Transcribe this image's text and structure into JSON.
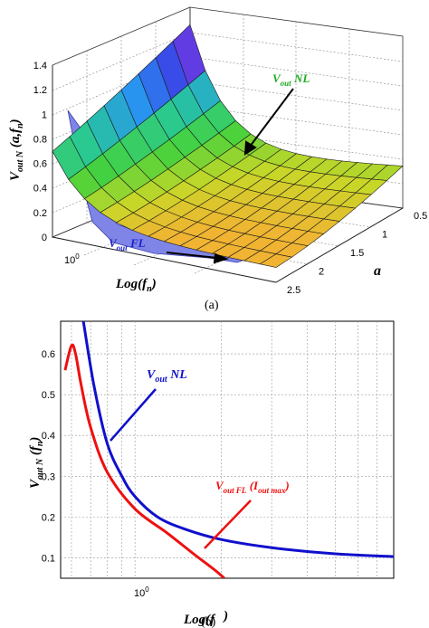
{
  "chart_data": [
    {
      "id": "a",
      "type": "surface",
      "caption": "(a)",
      "z_label": {
        "main": "V",
        "sub": "out N",
        "rest": " (a,f",
        "rest_sub": "n",
        "close": ")"
      },
      "x_label": {
        "main": "Log(f",
        "sub": "n",
        "close": ")"
      },
      "y_label": "a",
      "z_ticks": [
        "0",
        "0.2",
        "0.4",
        "0.6",
        "0.8",
        "1",
        "1.2",
        "1.4"
      ],
      "z_range": [
        0,
        1.4
      ],
      "a_ticks": [
        "0.5",
        "1",
        "1.5",
        "2",
        "2.5"
      ],
      "a_range": [
        0.5,
        2.5
      ],
      "x_tick": {
        "base": "10",
        "exp": "0"
      },
      "annotations": [
        {
          "main": "V",
          "sub": "out",
          "rest": " NL",
          "color": "#22aa22"
        },
        {
          "main": "V",
          "sub": "out",
          "rest": " FL",
          "color": "#2222cc"
        }
      ]
    },
    {
      "id": "b",
      "type": "line",
      "caption": "(b)",
      "y_label": {
        "main": "V",
        "sub": "out N",
        "rest": " (f",
        "rest_sub": "n",
        "close": ")"
      },
      "x_label": {
        "main": "Log(f",
        "sub": "",
        "close": ")"
      },
      "x_scale": "log",
      "x_range": [
        0.55,
        8
      ],
      "y_range": [
        0.05,
        0.68
      ],
      "y_ticks": [
        "0.1",
        "0.2",
        "0.3",
        "0.4",
        "0.5",
        "0.6"
      ],
      "x_tick": {
        "base": "10",
        "exp": "0"
      },
      "series": [
        {
          "color": "#1010cc",
          "x": [
            0.66,
            0.72,
            0.8,
            0.9,
            1.0,
            1.2,
            1.5,
            2.0,
            3.0,
            5.0,
            8.0
          ],
          "y": [
            0.68,
            0.52,
            0.38,
            0.3,
            0.25,
            0.2,
            0.17,
            0.145,
            0.125,
            0.11,
            0.103
          ]
        },
        {
          "color": "#ee1010",
          "x": [
            0.57,
            0.6,
            0.62,
            0.65,
            0.7,
            0.8,
            1.0,
            1.3,
            1.6,
            1.9,
            2.05
          ],
          "y": [
            0.56,
            0.62,
            0.6,
            0.52,
            0.42,
            0.31,
            0.22,
            0.16,
            0.11,
            0.07,
            0.05
          ]
        }
      ],
      "annotations": [
        {
          "main": "V",
          "sub": "out",
          "rest": " NL",
          "color": "#1010cc"
        },
        {
          "main": "V",
          "sub": "out FL",
          "rest": " (I",
          "rest_sub": "out max",
          "close": ")",
          "color": "#ee1010"
        }
      ]
    }
  ]
}
